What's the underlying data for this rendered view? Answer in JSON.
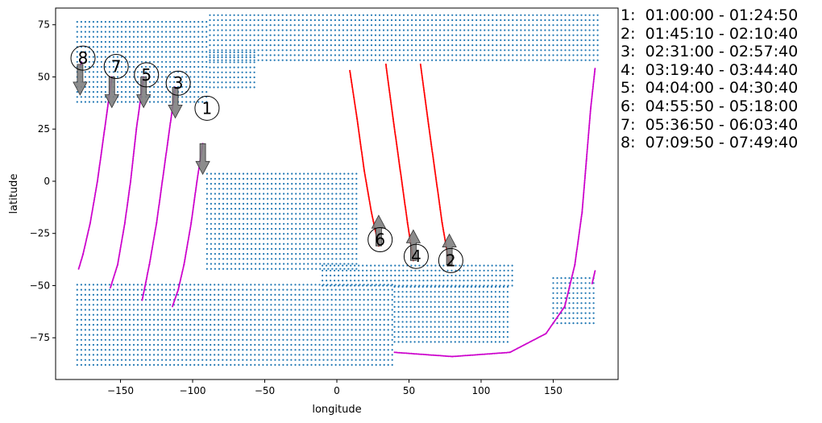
{
  "chart_data": {
    "type": "scatter",
    "xlabel": "longitude",
    "ylabel": "latitude",
    "xlim": [
      -195,
      195
    ],
    "ylim": [
      -95,
      83
    ],
    "xticks": [
      -150,
      -100,
      -50,
      0,
      50,
      100,
      150
    ],
    "yticks": [
      -75,
      -50,
      -25,
      0,
      25,
      50,
      75
    ],
    "grid": false,
    "colors": {
      "land": "#1f77b4",
      "ascending": "#ff0000",
      "descending": "#cc00cc",
      "arrow": "#808080"
    },
    "passes": [
      {
        "id": "1",
        "label": "01:00:00 - 01:24:50",
        "direction": "down",
        "lon": -93,
        "lat": 18,
        "label_lon": -90,
        "label_lat": 35,
        "track": [
          [
            -93,
            18
          ],
          [
            -97,
            0
          ],
          [
            -101,
            -20
          ],
          [
            -106,
            -40
          ],
          [
            -110,
            -52
          ],
          [
            -114,
            -60
          ]
        ]
      },
      {
        "id": "2",
        "label": "01:45:10 - 02:10:40",
        "direction": "up",
        "lon": 78,
        "lat": -40,
        "label_lon": 79,
        "label_lat": -38,
        "track": [
          [
            58,
            56
          ],
          [
            63,
            30
          ],
          [
            68,
            5
          ],
          [
            73,
            -20
          ],
          [
            78,
            -40
          ]
        ]
      },
      {
        "id": "3",
        "label": "02:31:00 - 02:57:40",
        "direction": "down",
        "lon": -112,
        "lat": 45,
        "label_lon": -110,
        "label_lat": 47,
        "track": [
          [
            -112,
            45
          ],
          [
            -117,
            20
          ],
          [
            -121,
            0
          ],
          [
            -125,
            -20
          ],
          [
            -130,
            -40
          ],
          [
            -135,
            -57
          ]
        ]
      },
      {
        "id": "4",
        "label": "03:19:40 - 03:44:40",
        "direction": "up",
        "lon": 53,
        "lat": -38,
        "label_lon": 55,
        "label_lat": -36,
        "track": [
          [
            34,
            56
          ],
          [
            39,
            30
          ],
          [
            44,
            5
          ],
          [
            49,
            -20
          ],
          [
            53,
            -38
          ]
        ]
      },
      {
        "id": "5",
        "label": "04:04:00 - 04:30:40",
        "direction": "down",
        "lon": -134,
        "lat": 50,
        "label_lon": -132,
        "label_lat": 51,
        "track": [
          [
            -134,
            50
          ],
          [
            -139,
            25
          ],
          [
            -143,
            0
          ],
          [
            -147,
            -20
          ],
          [
            -152,
            -40
          ],
          [
            -157,
            -51
          ]
        ]
      },
      {
        "id": "6",
        "label": "04:55:50 - 05:18:00",
        "direction": "up",
        "lon": 29,
        "lat": -31,
        "label_lon": 30,
        "label_lat": -28,
        "track": [
          [
            9,
            53
          ],
          [
            14,
            30
          ],
          [
            19,
            5
          ],
          [
            24,
            -15
          ],
          [
            29,
            -31
          ]
        ]
      },
      {
        "id": "7",
        "label": "05:36:50 - 06:03:40",
        "direction": "down",
        "lon": -156,
        "lat": 50,
        "label_lon": -153,
        "label_lat": 55,
        "track": [
          [
            -156,
            50
          ],
          [
            -161,
            25
          ],
          [
            -166,
            0
          ],
          [
            -171,
            -20
          ],
          [
            -176,
            -35
          ],
          [
            -179,
            -42
          ]
        ]
      },
      {
        "id": "8",
        "label": "07:09:50 - 07:49:40",
        "direction": "down",
        "lon": -178,
        "lat": 56,
        "label_lon": -176,
        "label_lat": 59,
        "track": [
          [
            -178,
            55
          ],
          [
            -177,
            57
          ]
        ]
      }
    ],
    "extra_track": [
      [
        40,
        -82
      ],
      [
        80,
        -84
      ],
      [
        120,
        -82
      ],
      [
        145,
        -73
      ],
      [
        158,
        -60
      ],
      [
        165,
        -40
      ],
      [
        170,
        -15
      ],
      [
        173,
        10
      ],
      [
        176,
        35
      ],
      [
        179,
        54
      ]
    ],
    "extra_track_tail": [
      [
        177,
        -49
      ],
      [
        179,
        -43
      ]
    ],
    "land_regions": [
      {
        "lon": [
          -180,
          -88
        ],
        "lat": [
          38,
          77
        ]
      },
      {
        "lon": [
          -88,
          182
        ],
        "lat": [
          58,
          80
        ]
      },
      {
        "lon": [
          -88,
          -55
        ],
        "lat": [
          45,
          62
        ]
      },
      {
        "lon": [
          -90,
          15
        ],
        "lat": [
          -42,
          5
        ]
      },
      {
        "lon": [
          -10,
          122
        ],
        "lat": [
          -50,
          -40
        ]
      },
      {
        "lon": [
          -180,
          40
        ],
        "lat": [
          -88,
          -48
        ]
      },
      {
        "lon": [
          40,
          120
        ],
        "lat": [
          -77,
          -50
        ]
      },
      {
        "lon": [
          150,
          180
        ],
        "lat": [
          -68,
          -45
        ]
      }
    ]
  }
}
